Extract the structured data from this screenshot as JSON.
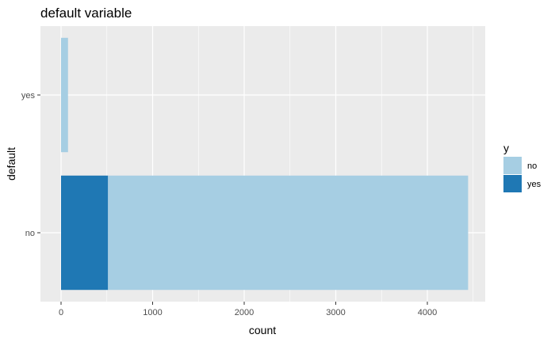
{
  "chart_data": {
    "type": "bar",
    "orientation": "horizontal",
    "stacked": true,
    "title": "default variable",
    "xlabel": "count",
    "ylabel": "default",
    "categories": [
      "no",
      "yes"
    ],
    "series": [
      {
        "name": "yes",
        "color": "#1f78b4",
        "values": [
          513,
          0
        ]
      },
      {
        "name": "no",
        "color": "#a6cee3",
        "values": [
          3932,
          76
        ]
      }
    ],
    "xlim": [
      0,
      4650
    ],
    "xticks": [
      0,
      1000,
      2000,
      3000,
      4000
    ],
    "xtick_labels": [
      "0",
      "1000",
      "2000",
      "3000",
      "4000"
    ],
    "grid": true,
    "legend": {
      "title": "y",
      "position": "right",
      "items": [
        {
          "label": "no",
          "color": "#a6cee3"
        },
        {
          "label": "yes",
          "color": "#1f78b4"
        }
      ]
    }
  }
}
